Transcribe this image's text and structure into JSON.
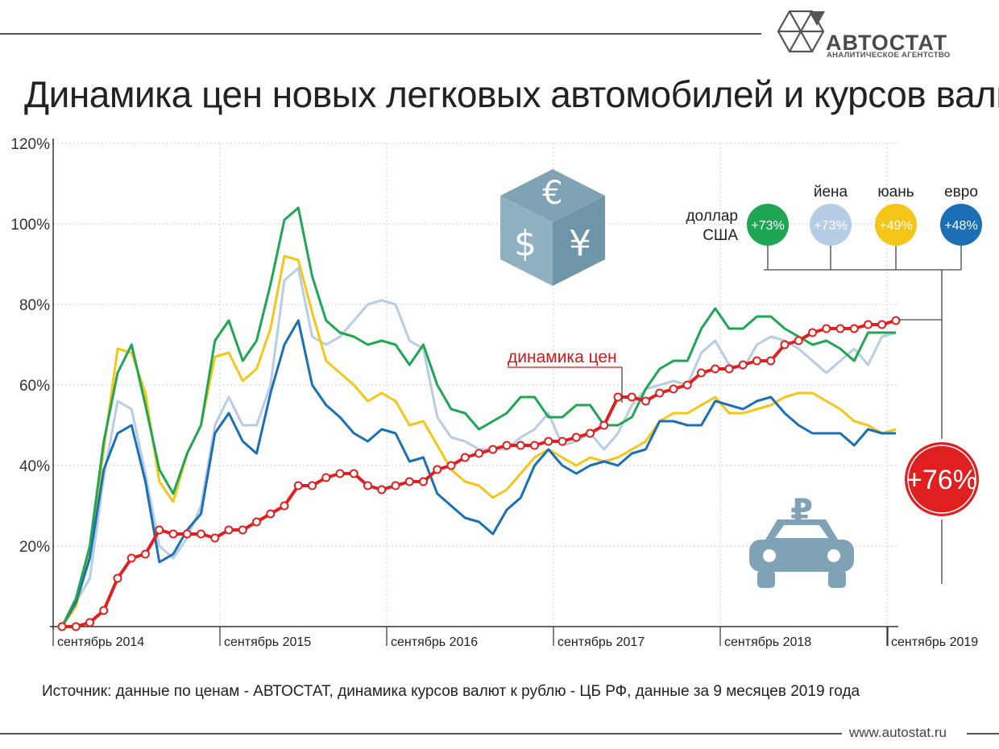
{
  "title": "Динамика цен новых легковых автомобилей и курсов валют",
  "logo": {
    "name": "АВТОСТАТ",
    "subtitle": "АНАЛИТИЧЕСКОЕ АГЕНТСТВО"
  },
  "source": "Источник: данные по ценам - АВТОСТАТ, динамика курсов валют к рублю - ЦБ РФ, данные за 9 месяцев 2019 года",
  "site": "www.autostat.ru",
  "icons": [
    "currency-cube-icon",
    "car-ruble-icon"
  ],
  "chart_data": {
    "type": "line",
    "ylim": [
      0,
      120
    ],
    "yticks": [
      "20%",
      "40%",
      "60%",
      "80%",
      "100%",
      "120%"
    ],
    "xticks": [
      "сентябрь 2014",
      "сентябрь 2015",
      "сентябрь 2016",
      "сентябрь 2017",
      "сентябрь 2018",
      "сентябрь 2019"
    ],
    "grid": true,
    "months_count": 61,
    "series": [
      {
        "name": "йена",
        "color": "#b7cde6",
        "badge": "+73%",
        "values": [
          0,
          6,
          12,
          37,
          56,
          54,
          38,
          20,
          17,
          22,
          30,
          50,
          57,
          50,
          50,
          60,
          86,
          89,
          72,
          70,
          72,
          76,
          80,
          81,
          80,
          71,
          69,
          52,
          47,
          46,
          44,
          44,
          44,
          47,
          49,
          53,
          45,
          46,
          48,
          44,
          48,
          55,
          59,
          60,
          61,
          60,
          68,
          71,
          65,
          64,
          70,
          72,
          71,
          69,
          66,
          63,
          66,
          69,
          65,
          72,
          73
        ]
      },
      {
        "name": "юань",
        "color": "#f5c518",
        "badge": "+49%",
        "values": [
          0,
          5,
          18,
          44,
          69,
          68,
          58,
          36,
          31,
          43,
          50,
          67,
          68,
          61,
          64,
          74,
          92,
          91,
          78,
          66,
          63,
          60,
          56,
          58,
          56,
          50,
          51,
          45,
          39,
          36,
          35,
          32,
          34,
          38,
          42,
          44,
          42,
          40,
          42,
          41,
          42,
          44,
          46,
          51,
          53,
          53,
          55,
          57,
          53,
          53,
          54,
          55,
          57,
          58,
          58,
          56,
          54,
          51,
          50,
          48,
          49
        ]
      },
      {
        "name": "евро",
        "color": "#1a6fb5",
        "badge": "+48%",
        "values": [
          0,
          6,
          17,
          39,
          48,
          50,
          36,
          16,
          18,
          24,
          28,
          48,
          53,
          46,
          43,
          58,
          70,
          76,
          60,
          55,
          52,
          48,
          46,
          49,
          48,
          41,
          42,
          33,
          30,
          27,
          26,
          23,
          29,
          32,
          40,
          44,
          40,
          38,
          40,
          41,
          40,
          43,
          44,
          51,
          51,
          50,
          50,
          56,
          55,
          54,
          56,
          57,
          53,
          50,
          48,
          48,
          48,
          45,
          49,
          48,
          48
        ]
      },
      {
        "name": "доллар США",
        "color": "#1fa653",
        "badge": "+73%",
        "values": [
          0,
          7,
          20,
          46,
          63,
          70,
          55,
          39,
          33,
          43,
          50,
          71,
          76,
          66,
          71,
          85,
          101,
          104,
          87,
          76,
          73,
          72,
          70,
          71,
          70,
          65,
          70,
          60,
          54,
          53,
          49,
          51,
          53,
          57,
          57,
          52,
          52,
          55,
          55,
          50,
          50,
          52,
          59,
          64,
          66,
          66,
          74,
          79,
          74,
          74,
          77,
          77,
          74,
          72,
          70,
          71,
          69,
          66,
          73,
          73,
          73
        ]
      },
      {
        "name": "динамика цен",
        "color": "#e02020",
        "badge": "+76%",
        "values": [
          0,
          0,
          1,
          4,
          12,
          17,
          18,
          24,
          23,
          23,
          23,
          22,
          24,
          24,
          26,
          28,
          30,
          35,
          35,
          37,
          38,
          38,
          35,
          34,
          35,
          36,
          36,
          39,
          40,
          42,
          43,
          44,
          45,
          45,
          45,
          46,
          46,
          47,
          48,
          50,
          57,
          57,
          56,
          58,
          59,
          60,
          63,
          64,
          64,
          65,
          66,
          66,
          70,
          71,
          73,
          74,
          74,
          74,
          75,
          75,
          76
        ]
      }
    ],
    "legend_items": [
      {
        "label": "доллар\nСША",
        "badge": "+73%",
        "color": "#1fa653"
      },
      {
        "label": "йена",
        "badge": "+73%",
        "color": "#b7cde6"
      },
      {
        "label": "юань",
        "badge": "+49%",
        "color": "#f5c518"
      },
      {
        "label": "евро",
        "badge": "+48%",
        "color": "#1a6fb5"
      }
    ],
    "annotation_label": "динамика цен",
    "highlight_badge": "+76%"
  }
}
